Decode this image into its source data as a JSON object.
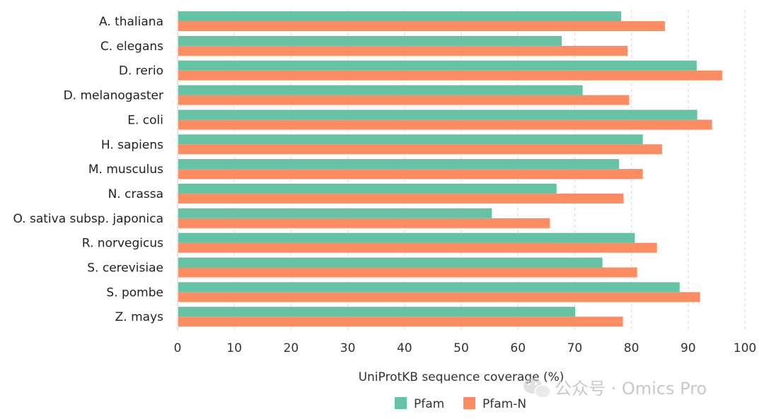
{
  "chart_data": {
    "type": "bar",
    "orientation": "horizontal",
    "categories": [
      "A. thaliana",
      "C. elegans",
      "D. rerio",
      "D. melanogaster",
      "E. coli",
      "H. sapiens",
      "M. musculus",
      "N. crassa",
      "O. sativa subsp. japonica",
      "R. norvegicus",
      "S. cerevisiae",
      "S. pombe",
      "Z. mays"
    ],
    "series": [
      {
        "name": "Pfam",
        "color": "#66c2a5",
        "values": [
          78.2,
          67.7,
          91.5,
          71.4,
          91.6,
          82.0,
          77.8,
          66.8,
          55.4,
          80.6,
          74.9,
          88.5,
          70.1
        ]
      },
      {
        "name": "Pfam-N",
        "color": "#fc8d62",
        "values": [
          85.9,
          79.3,
          96.0,
          79.6,
          94.2,
          85.4,
          82.0,
          78.6,
          65.6,
          84.5,
          81.0,
          92.1,
          78.5
        ]
      }
    ],
    "xlabel": "UniProtKB sequence coverage (%)",
    "xlim": [
      0,
      100
    ],
    "xticks": [
      0,
      10,
      20,
      30,
      40,
      50,
      60,
      70,
      80,
      90,
      100
    ],
    "grid": "vertical dashed",
    "legend_position": "bottom-center"
  },
  "watermark": {
    "text": "公众号 · Omics Pro",
    "icon": "wechat-icon"
  }
}
